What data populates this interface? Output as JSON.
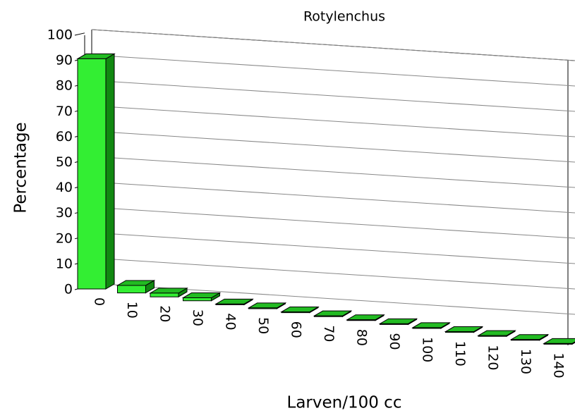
{
  "chart_data": {
    "type": "bar3d",
    "title": "Rotylenchus",
    "x_label": "Larven/100 cc",
    "y_label": "Percentage",
    "categories": [
      "0",
      "10",
      "20",
      "30",
      "40",
      "50",
      "60",
      "70",
      "80",
      "90",
      "100",
      "110",
      "120",
      "130",
      "140"
    ],
    "values": [
      92,
      3,
      1.5,
      1.2,
      0.3,
      0.3,
      0.3,
      0.3,
      0.3,
      0.3,
      0.3,
      0.3,
      0.3,
      0.3,
      0.3
    ],
    "color": "#33ee33",
    "ylim": [
      0,
      100
    ],
    "yticks": [
      0,
      10,
      20,
      30,
      40,
      50,
      60,
      70,
      80,
      90,
      100
    ],
    "grid": true
  }
}
